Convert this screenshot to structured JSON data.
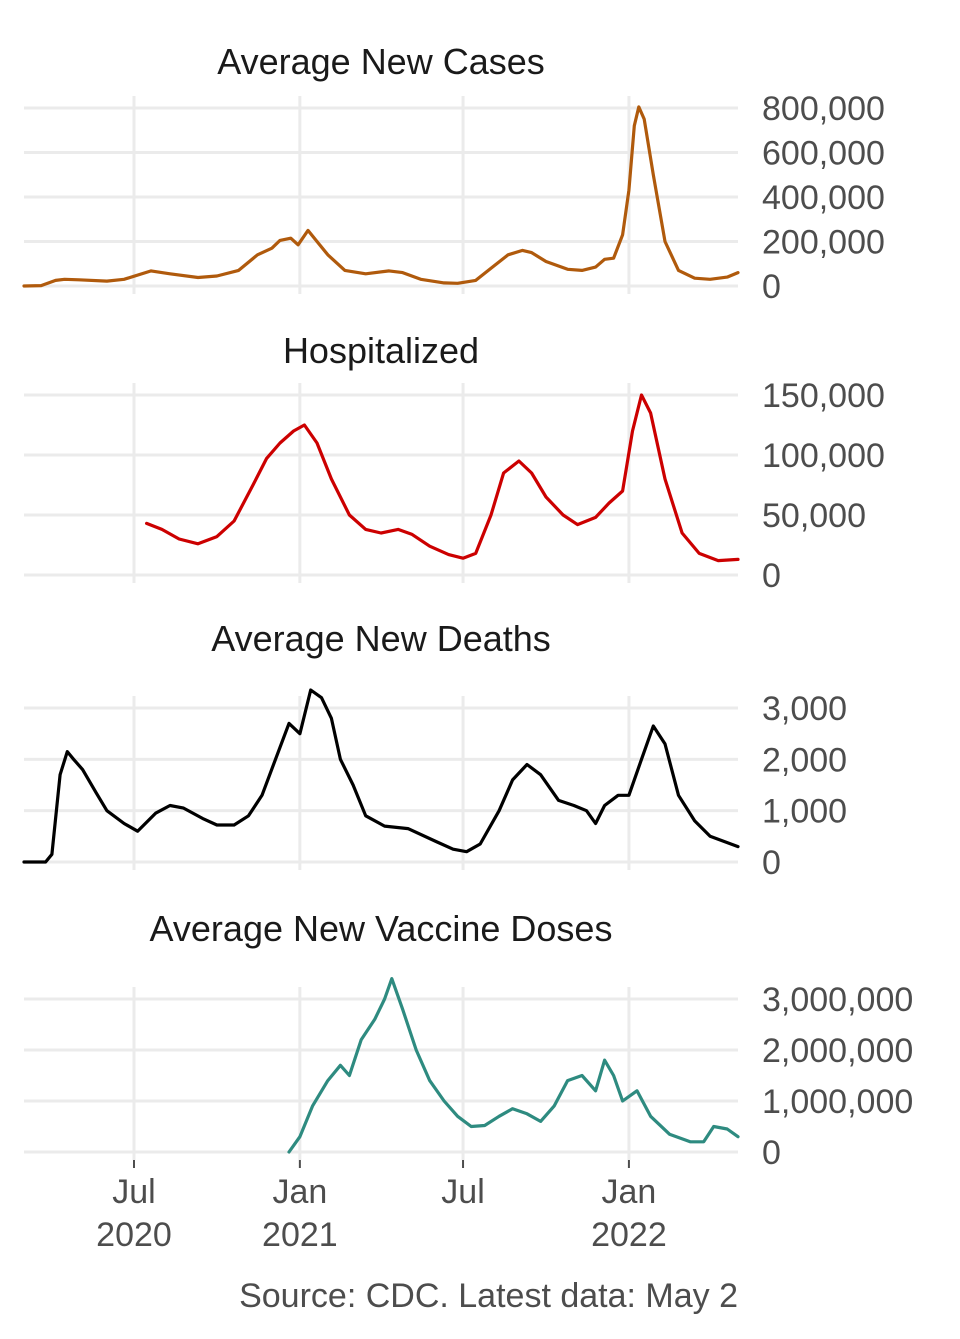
{
  "colors": {
    "cases": "#b05a0c",
    "hospitalized": "#cc0000",
    "deaths": "#000000",
    "vaccines": "#2e8b80",
    "grid": "#ebebeb",
    "text": "#4d4d4d"
  },
  "source_note": "Source: CDC. Latest data: May 2",
  "x_axis": {
    "start": "2020-03-01",
    "end": "2022-05-02",
    "ticks": [
      {
        "date": "2020-07-01",
        "line1": "Jul",
        "line2": "2020"
      },
      {
        "date": "2021-01-01",
        "line1": "Jan",
        "line2": "2021"
      },
      {
        "date": "2021-07-01",
        "line1": "Jul",
        "line2": ""
      },
      {
        "date": "2022-01-01",
        "line1": "Jan",
        "line2": "2022"
      }
    ]
  },
  "chart_data": [
    {
      "type": "line",
      "key": "cases",
      "title": "Average New Cases",
      "ylim": [
        0,
        800000
      ],
      "yticks": [
        0,
        200000,
        400000,
        600000,
        800000
      ],
      "ytick_labels": [
        "0",
        "200,000",
        "400,000",
        "600,000",
        "800,000"
      ],
      "points": [
        [
          "2020-03-01",
          0
        ],
        [
          "2020-03-20",
          2000
        ],
        [
          "2020-04-05",
          25000
        ],
        [
          "2020-04-15",
          30000
        ],
        [
          "2020-05-01",
          28000
        ],
        [
          "2020-06-01",
          22000
        ],
        [
          "2020-06-20",
          30000
        ],
        [
          "2020-07-20",
          68000
        ],
        [
          "2020-08-10",
          55000
        ],
        [
          "2020-09-10",
          38000
        ],
        [
          "2020-10-01",
          45000
        ],
        [
          "2020-10-25",
          70000
        ],
        [
          "2020-11-15",
          140000
        ],
        [
          "2020-12-01",
          170000
        ],
        [
          "2020-12-10",
          205000
        ],
        [
          "2020-12-22",
          215000
        ],
        [
          "2020-12-30",
          185000
        ],
        [
          "2021-01-10",
          250000
        ],
        [
          "2021-01-20",
          200000
        ],
        [
          "2021-02-01",
          140000
        ],
        [
          "2021-02-20",
          70000
        ],
        [
          "2021-03-15",
          55000
        ],
        [
          "2021-04-10",
          68000
        ],
        [
          "2021-04-25",
          60000
        ],
        [
          "2021-05-15",
          30000
        ],
        [
          "2021-06-10",
          14000
        ],
        [
          "2021-06-25",
          12000
        ],
        [
          "2021-07-15",
          25000
        ],
        [
          "2021-08-01",
          80000
        ],
        [
          "2021-08-20",
          140000
        ],
        [
          "2021-09-05",
          160000
        ],
        [
          "2021-09-15",
          150000
        ],
        [
          "2021-10-01",
          110000
        ],
        [
          "2021-10-25",
          75000
        ],
        [
          "2021-11-10",
          70000
        ],
        [
          "2021-11-25",
          85000
        ],
        [
          "2021-12-05",
          120000
        ],
        [
          "2021-12-15",
          125000
        ],
        [
          "2021-12-25",
          230000
        ],
        [
          "2022-01-01",
          430000
        ],
        [
          "2022-01-07",
          720000
        ],
        [
          "2022-01-12",
          805000
        ],
        [
          "2022-01-18",
          750000
        ],
        [
          "2022-01-28",
          500000
        ],
        [
          "2022-02-10",
          200000
        ],
        [
          "2022-02-25",
          70000
        ],
        [
          "2022-03-15",
          35000
        ],
        [
          "2022-04-01",
          30000
        ],
        [
          "2022-04-20",
          40000
        ],
        [
          "2022-05-02",
          60000
        ]
      ]
    },
    {
      "type": "line",
      "key": "hospitalized",
      "title": "Hospitalized",
      "ylim": [
        0,
        150000
      ],
      "yticks": [
        0,
        50000,
        100000,
        150000
      ],
      "ytick_labels": [
        "0",
        "50,000",
        "100,000",
        "150,000"
      ],
      "points": [
        [
          "2020-07-15",
          43000
        ],
        [
          "2020-08-01",
          38000
        ],
        [
          "2020-08-20",
          30000
        ],
        [
          "2020-09-10",
          26000
        ],
        [
          "2020-10-01",
          32000
        ],
        [
          "2020-10-20",
          45000
        ],
        [
          "2020-11-10",
          75000
        ],
        [
          "2020-11-25",
          97000
        ],
        [
          "2020-12-10",
          110000
        ],
        [
          "2020-12-25",
          120000
        ],
        [
          "2021-01-06",
          125000
        ],
        [
          "2021-01-20",
          110000
        ],
        [
          "2021-02-05",
          80000
        ],
        [
          "2021-02-25",
          50000
        ],
        [
          "2021-03-15",
          38000
        ],
        [
          "2021-04-01",
          35000
        ],
        [
          "2021-04-20",
          38000
        ],
        [
          "2021-05-05",
          34000
        ],
        [
          "2021-05-25",
          24000
        ],
        [
          "2021-06-15",
          17000
        ],
        [
          "2021-07-01",
          14000
        ],
        [
          "2021-07-15",
          18000
        ],
        [
          "2021-08-01",
          50000
        ],
        [
          "2021-08-15",
          85000
        ],
        [
          "2021-09-01",
          95000
        ],
        [
          "2021-09-15",
          85000
        ],
        [
          "2021-10-01",
          65000
        ],
        [
          "2021-10-20",
          50000
        ],
        [
          "2021-11-05",
          42000
        ],
        [
          "2021-11-25",
          48000
        ],
        [
          "2021-12-10",
          60000
        ],
        [
          "2021-12-25",
          70000
        ],
        [
          "2022-01-05",
          120000
        ],
        [
          "2022-01-15",
          150000
        ],
        [
          "2022-01-25",
          135000
        ],
        [
          "2022-02-10",
          80000
        ],
        [
          "2022-03-01",
          35000
        ],
        [
          "2022-03-20",
          18000
        ],
        [
          "2022-04-10",
          12000
        ],
        [
          "2022-05-02",
          13000
        ]
      ]
    },
    {
      "type": "line",
      "key": "deaths",
      "title": "Average New Deaths",
      "ylim": [
        0,
        3000
      ],
      "yticks": [
        0,
        1000,
        2000,
        3000
      ],
      "ytick_labels": [
        "0",
        "1,000",
        "2,000",
        "3,000"
      ],
      "points": [
        [
          "2020-03-01",
          0
        ],
        [
          "2020-03-25",
          0
        ],
        [
          "2020-04-01",
          150
        ],
        [
          "2020-04-10",
          1700
        ],
        [
          "2020-04-18",
          2150
        ],
        [
          "2020-04-25",
          2000
        ],
        [
          "2020-05-05",
          1800
        ],
        [
          "2020-05-20",
          1350
        ],
        [
          "2020-06-01",
          1000
        ],
        [
          "2020-06-20",
          750
        ],
        [
          "2020-07-05",
          600
        ],
        [
          "2020-07-25",
          950
        ],
        [
          "2020-08-10",
          1100
        ],
        [
          "2020-08-25",
          1050
        ],
        [
          "2020-09-15",
          850
        ],
        [
          "2020-10-01",
          720
        ],
        [
          "2020-10-20",
          720
        ],
        [
          "2020-11-05",
          900
        ],
        [
          "2020-11-20",
          1300
        ],
        [
          "2020-12-05",
          2000
        ],
        [
          "2020-12-20",
          2700
        ],
        [
          "2021-01-01",
          2500
        ],
        [
          "2021-01-13",
          3350
        ],
        [
          "2021-01-25",
          3200
        ],
        [
          "2021-02-05",
          2800
        ],
        [
          "2021-02-15",
          2000
        ],
        [
          "2021-03-01",
          1500
        ],
        [
          "2021-03-15",
          900
        ],
        [
          "2021-04-05",
          700
        ],
        [
          "2021-05-01",
          650
        ],
        [
          "2021-06-01",
          400
        ],
        [
          "2021-06-20",
          250
        ],
        [
          "2021-07-05",
          200
        ],
        [
          "2021-07-20",
          350
        ],
        [
          "2021-08-10",
          1000
        ],
        [
          "2021-08-25",
          1600
        ],
        [
          "2021-09-10",
          1900
        ],
        [
          "2021-09-25",
          1700
        ],
        [
          "2021-10-15",
          1200
        ],
        [
          "2021-11-01",
          1100
        ],
        [
          "2021-11-15",
          1000
        ],
        [
          "2021-11-25",
          750
        ],
        [
          "2021-12-05",
          1100
        ],
        [
          "2021-12-20",
          1300
        ],
        [
          "2022-01-01",
          1300
        ],
        [
          "2022-01-15",
          2000
        ],
        [
          "2022-01-28",
          2650
        ],
        [
          "2022-02-10",
          2300
        ],
        [
          "2022-02-25",
          1300
        ],
        [
          "2022-03-15",
          800
        ],
        [
          "2022-04-01",
          500
        ],
        [
          "2022-05-02",
          300
        ]
      ]
    },
    {
      "type": "line",
      "key": "vaccines",
      "title": "Average New Vaccine Doses",
      "ylim": [
        0,
        3000000
      ],
      "yticks": [
        0,
        1000000,
        2000000,
        3000000
      ],
      "ytick_labels": [
        "0",
        "1,000,000",
        "2,000,000",
        "3,000,000"
      ],
      "points": [
        [
          "2020-12-20",
          0
        ],
        [
          "2021-01-01",
          300000
        ],
        [
          "2021-01-15",
          900000
        ],
        [
          "2021-02-01",
          1400000
        ],
        [
          "2021-02-15",
          1700000
        ],
        [
          "2021-02-25",
          1500000
        ],
        [
          "2021-03-10",
          2200000
        ],
        [
          "2021-03-25",
          2600000
        ],
        [
          "2021-04-05",
          3000000
        ],
        [
          "2021-04-13",
          3400000
        ],
        [
          "2021-04-25",
          2800000
        ],
        [
          "2021-05-10",
          2000000
        ],
        [
          "2021-05-25",
          1400000
        ],
        [
          "2021-06-10",
          1000000
        ],
        [
          "2021-06-25",
          700000
        ],
        [
          "2021-07-10",
          500000
        ],
        [
          "2021-07-25",
          520000
        ],
        [
          "2021-08-10",
          700000
        ],
        [
          "2021-08-25",
          850000
        ],
        [
          "2021-09-10",
          750000
        ],
        [
          "2021-09-25",
          600000
        ],
        [
          "2021-10-10",
          900000
        ],
        [
          "2021-10-25",
          1400000
        ],
        [
          "2021-11-10",
          1500000
        ],
        [
          "2021-11-25",
          1200000
        ],
        [
          "2021-12-05",
          1800000
        ],
        [
          "2021-12-15",
          1500000
        ],
        [
          "2021-12-25",
          1000000
        ],
        [
          "2022-01-10",
          1200000
        ],
        [
          "2022-01-25",
          700000
        ],
        [
          "2022-02-15",
          350000
        ],
        [
          "2022-03-10",
          200000
        ],
        [
          "2022-03-25",
          200000
        ],
        [
          "2022-04-05",
          500000
        ],
        [
          "2022-04-20",
          450000
        ],
        [
          "2022-05-02",
          300000
        ]
      ]
    }
  ]
}
